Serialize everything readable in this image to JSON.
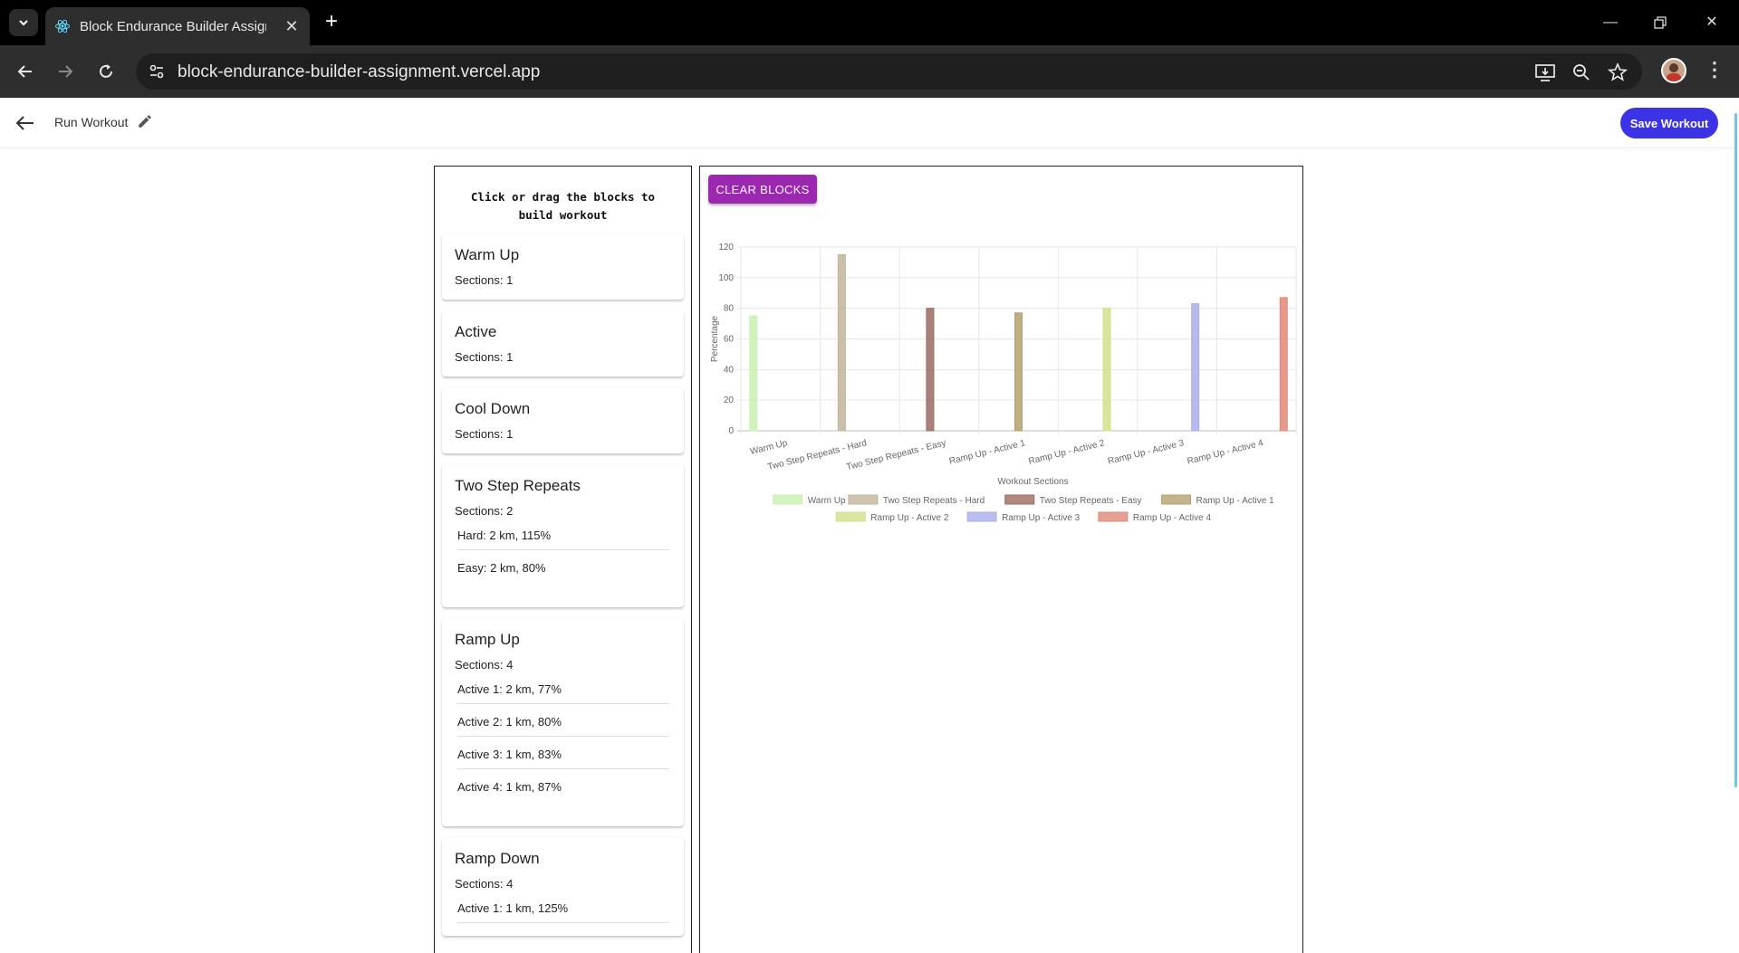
{
  "browser": {
    "tab_title": "Block Endurance Builder Assignment",
    "url": "block-endurance-builder-assignment.vercel.app"
  },
  "header": {
    "title": "Run Workout",
    "save_label": "Save Workout"
  },
  "blocks_panel": {
    "heading": "Click or drag the blocks to build workout",
    "sections_prefix": "Sections: ",
    "blocks": [
      {
        "name": "Warm Up",
        "sections": "1",
        "items": []
      },
      {
        "name": "Active",
        "sections": "1",
        "items": []
      },
      {
        "name": "Cool Down",
        "sections": "1",
        "items": []
      },
      {
        "name": "Two Step Repeats",
        "sections": "2",
        "items": [
          "Hard: 2 km, 115%",
          "Easy: 2 km, 80%"
        ]
      },
      {
        "name": "Ramp Up",
        "sections": "4",
        "items": [
          "Active 1: 2 km, 77%",
          "Active 2: 1 km, 80%",
          "Active 3: 1 km, 83%",
          "Active 4: 1 km, 87%"
        ]
      },
      {
        "name": "Ramp Down",
        "sections": "4",
        "items": [
          "Active 1: 1 km, 125%"
        ]
      }
    ]
  },
  "chart_panel": {
    "clear_label": "CLEAR BLOCKS"
  },
  "chart_data": {
    "type": "bar",
    "categories": [
      "Warm Up",
      "Two Step Repeats - Hard",
      "Two Step Repeats - Easy",
      "Ramp Up - Active 1",
      "Ramp Up - Active 2",
      "Ramp Up - Active 3",
      "Ramp Up - Active 4"
    ],
    "series": [
      {
        "name": "Warm Up",
        "index": 0,
        "value": 75,
        "color": "#c8f0b0"
      },
      {
        "name": "Two Step Repeats - Hard",
        "index": 1,
        "value": 115,
        "color": "#c2b49a"
      },
      {
        "name": "Two Step Repeats - Easy",
        "index": 2,
        "value": 80,
        "color": "#9b6b60"
      },
      {
        "name": "Ramp Up - Active 1",
        "index": 3,
        "value": 77,
        "color": "#b5a070"
      },
      {
        "name": "Ramp Up - Active 2",
        "index": 4,
        "value": 80,
        "color": "#d2e08a"
      },
      {
        "name": "Ramp Up - Active 3",
        "index": 5,
        "value": 83,
        "color": "#aaaeea"
      },
      {
        "name": "Ramp Up - Active 4",
        "index": 6,
        "value": 87,
        "color": "#df8a78"
      }
    ],
    "xlabel": "Workout Sections",
    "ylabel": "Percentage",
    "ylim": [
      0,
      120
    ],
    "yticks": [
      0,
      20,
      40,
      60,
      80,
      100,
      120
    ],
    "grid": true,
    "legend": "bottom"
  }
}
